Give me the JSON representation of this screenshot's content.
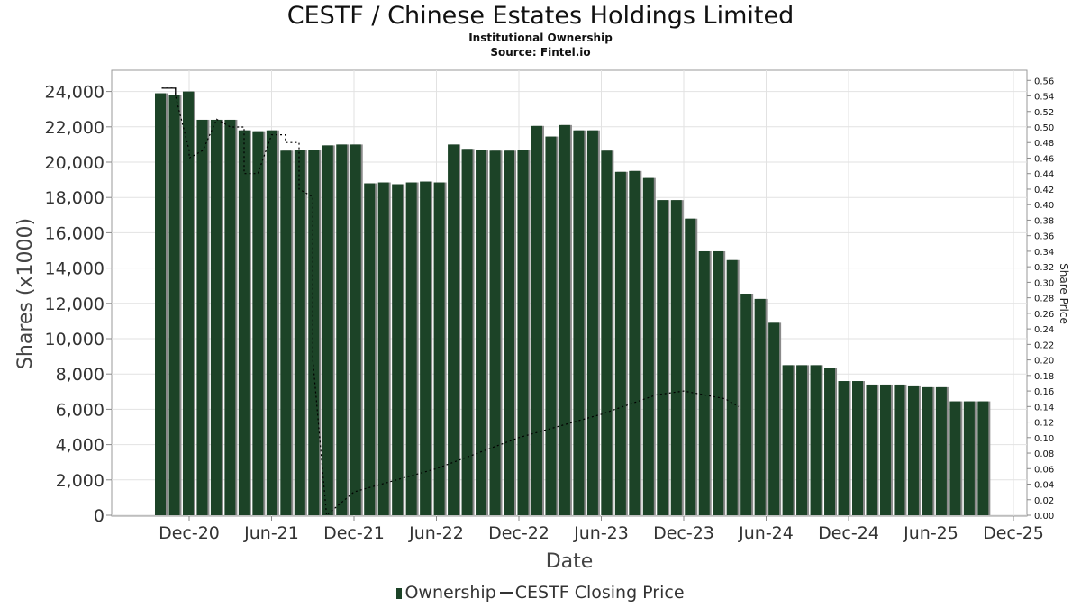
{
  "header": {
    "title": "CESTF / Chinese Estates Holdings Limited",
    "subtitle": "Institutional Ownership",
    "source": "Source: Fintel.io"
  },
  "legend": {
    "ownership": "Ownership",
    "price": "CESTF Closing Price"
  },
  "colors": {
    "bar": "#1c4327",
    "bar_shadow": "#8a8a8a",
    "line": "#000000",
    "grid": "#e2e2e2"
  },
  "chart_data": {
    "type": "bar",
    "title": "CESTF / Chinese Estates Holdings Limited",
    "xlabel": "Date",
    "ylabel": "Shares (x1000)",
    "y2label": "Share Price",
    "ylim": [
      0,
      25000
    ],
    "y2lim": [
      0,
      0.57
    ],
    "grid": true,
    "legend_position": "bottom",
    "yticks": [
      "0",
      "2,000",
      "4,000",
      "6,000",
      "8,000",
      "10,000",
      "12,000",
      "14,000",
      "16,000",
      "18,000",
      "20,000",
      "22,000",
      "24,000"
    ],
    "y2ticks": [
      "0.00",
      "0.02",
      "0.04",
      "0.06",
      "0.08",
      "0.10",
      "0.12",
      "0.14",
      "0.16",
      "0.18",
      "0.20",
      "0.22",
      "0.24",
      "0.26",
      "0.28",
      "0.30",
      "0.32",
      "0.34",
      "0.36",
      "0.38",
      "0.40",
      "0.42",
      "0.44",
      "0.46",
      "0.48",
      "0.50",
      "0.52",
      "0.54",
      "0.56"
    ],
    "xticks": [
      "Dec-20",
      "Jun-21",
      "Dec-21",
      "Jun-22",
      "Dec-22",
      "Jun-23",
      "Dec-23",
      "Jun-24",
      "Dec-24",
      "Jun-25",
      "Dec-25"
    ],
    "series": [
      {
        "name": "Ownership",
        "values": [
          23900,
          23800,
          24000,
          22400,
          22400,
          22400,
          21800,
          21750,
          21800,
          20650,
          20700,
          20700,
          20950,
          21000,
          21000,
          18800,
          18850,
          18750,
          18850,
          18900,
          18850,
          21000,
          20750,
          20700,
          20650,
          20650,
          20700,
          22050,
          21450,
          22100,
          21800,
          21800,
          20650,
          19450,
          19500,
          19100,
          17850,
          17850,
          16800,
          14950,
          14950,
          14450,
          12550,
          12250,
          10900,
          8500,
          8500,
          8500,
          8350,
          7600,
          7600,
          7400,
          7400,
          7400,
          7350,
          7250,
          7250,
          6450,
          6450,
          6450
        ]
      },
      {
        "name": "CESTF Closing Price",
        "points": [
          [
            "Oct-20",
            0.55
          ],
          [
            "Nov-20",
            0.55
          ],
          [
            "Nov-20",
            0.54
          ],
          [
            "Dec-20",
            0.47
          ],
          [
            "Dec-20",
            0.46
          ],
          [
            "Jan-21",
            0.47
          ],
          [
            "Jan-21",
            0.47
          ],
          [
            "Feb-21",
            0.51
          ],
          [
            "Mar-21",
            0.5
          ],
          [
            "Apr-21",
            0.5
          ],
          [
            "Apr-21",
            0.44
          ],
          [
            "May-21",
            0.44
          ],
          [
            "Jun-21",
            0.49
          ],
          [
            "Jul-21",
            0.49
          ],
          [
            "Jul-21",
            0.48
          ],
          [
            "Aug-21",
            0.48
          ],
          [
            "Aug-21",
            0.42
          ],
          [
            "Sep-21",
            0.41
          ],
          [
            "Sep-21",
            0.2
          ],
          [
            "Oct-21",
            0.0
          ],
          [
            "Oct-21",
            0.0
          ],
          [
            "Dec-21",
            0.03
          ],
          [
            "Jun-22",
            0.06
          ],
          [
            "Dec-22",
            0.1
          ],
          [
            "Jun-23",
            0.13
          ],
          [
            "Oct-23",
            0.155
          ],
          [
            "Dec-23",
            0.16
          ],
          [
            "Mar-24",
            0.15
          ],
          [
            "Apr-24",
            0.14
          ]
        ]
      }
    ]
  }
}
